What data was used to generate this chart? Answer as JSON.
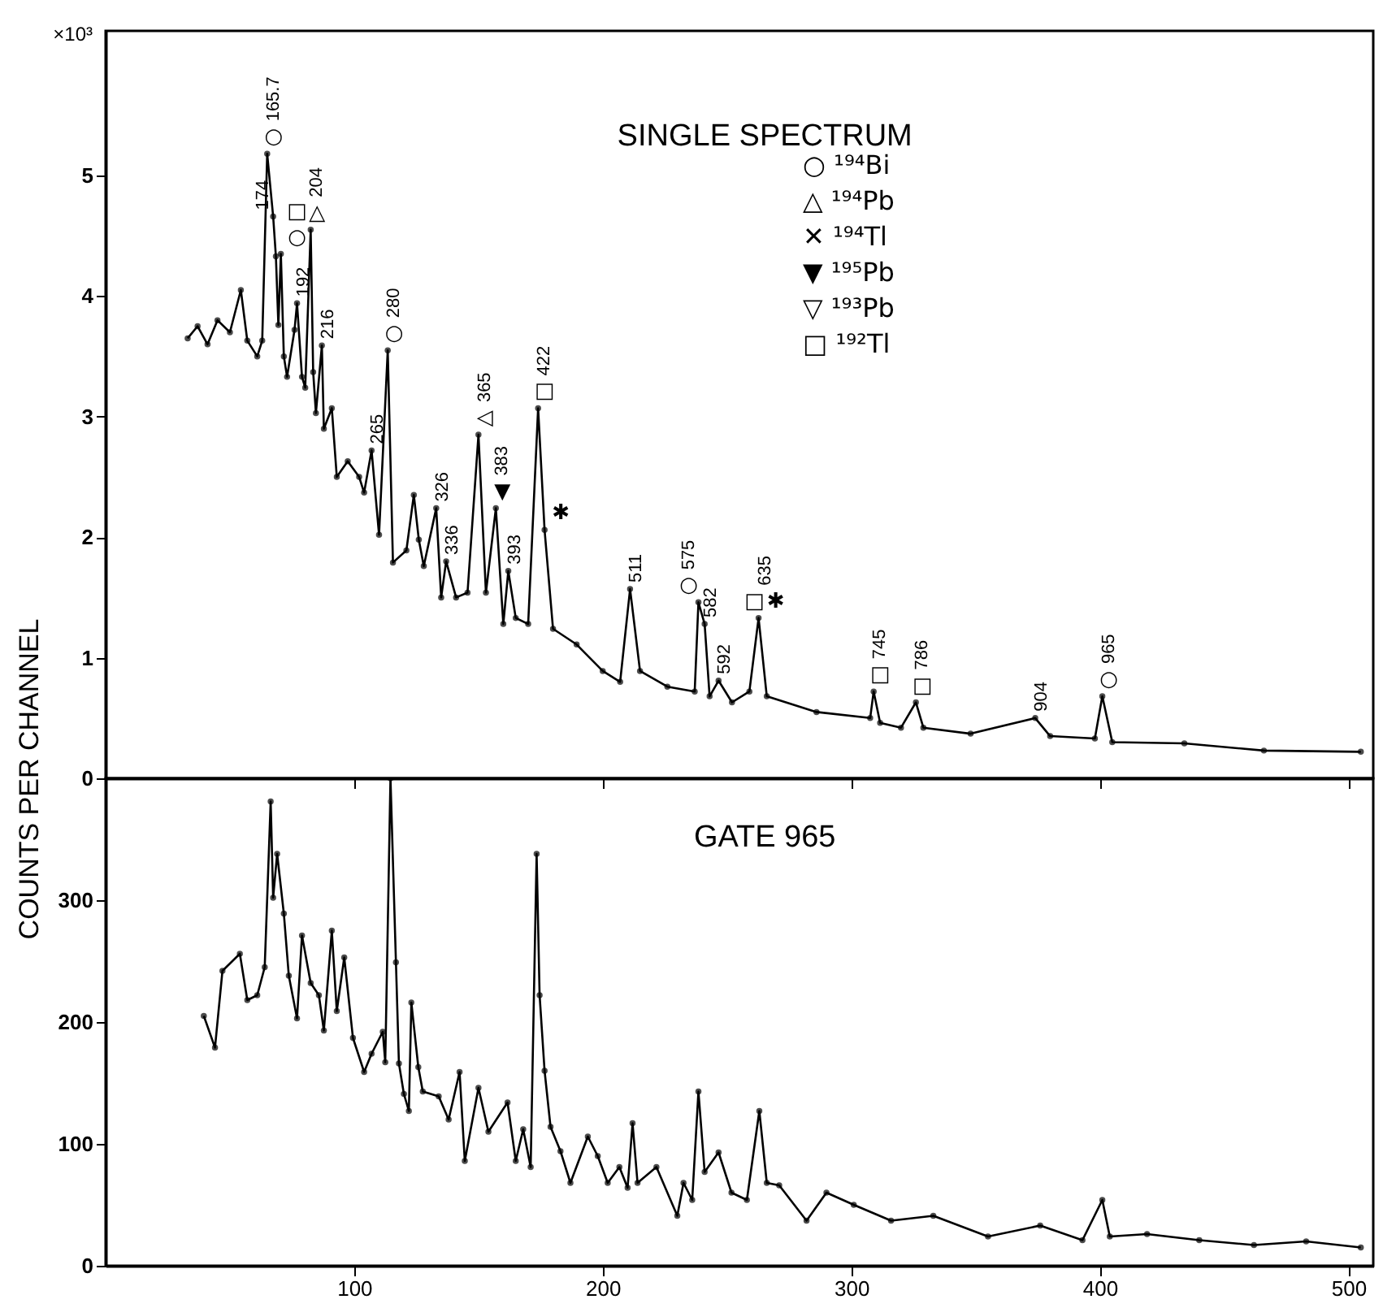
{
  "chart_data": [
    {
      "type": "line",
      "title": "SINGLE SPECTRUM",
      "ylabel": "COUNTS PER CHANNEL",
      "marker": "circle",
      "grid": false,
      "tick_labels": "y",
      "xlim": [
        0,
        510
      ],
      "ylim": [
        0,
        6.2
      ],
      "xticks": [
        100,
        200,
        300,
        400,
        500
      ],
      "yticks": [
        0,
        1,
        2,
        3,
        4,
        5
      ],
      "x": [
        33,
        37,
        41,
        45,
        50,
        54.4,
        57,
        61,
        63,
        65,
        67.4,
        68.5,
        69.5,
        70.5,
        71.7,
        73,
        76,
        77,
        79,
        80.3,
        82.5,
        83.5,
        84.6,
        87,
        87.8,
        91,
        93,
        97.4,
        102,
        104,
        107,
        110,
        113.5,
        115.6,
        121,
        124,
        126,
        128,
        133,
        135,
        137,
        141,
        145.6,
        150,
        153,
        157,
        160,
        162,
        165,
        170,
        174,
        176.6,
        180,
        189.5,
        200,
        207,
        211,
        215,
        226,
        237,
        238.5,
        241,
        243,
        246.6,
        252,
        259,
        262.7,
        266,
        286,
        307.6,
        309,
        311.6,
        320,
        326,
        329,
        348,
        374,
        380,
        398,
        401,
        405,
        434,
        466,
        505
      ],
      "series": [
        {
          "color": "#000000",
          "values": [
            3.65,
            3.75,
            3.6,
            3.8,
            3.7,
            4.05,
            3.63,
            3.5,
            3.63,
            5.18,
            4.66,
            4.33,
            3.76,
            4.35,
            3.5,
            3.33,
            3.72,
            3.94,
            3.33,
            3.24,
            4.55,
            3.37,
            3.03,
            3.59,
            2.9,
            3.07,
            2.5,
            2.63,
            2.5,
            2.37,
            2.72,
            2.02,
            3.55,
            1.79,
            1.89,
            2.35,
            1.98,
            1.76,
            2.24,
            1.5,
            1.8,
            1.5,
            1.54,
            2.85,
            1.54,
            2.24,
            1.28,
            1.72,
            1.33,
            1.28,
            3.07,
            2.06,
            1.24,
            1.11,
            0.89,
            0.8,
            1.57,
            0.89,
            0.76,
            0.72,
            1.46,
            1.28,
            0.68,
            0.81,
            0.63,
            0.72,
            1.33,
            0.68,
            0.55,
            0.5,
            0.72,
            0.46,
            0.42,
            0.63,
            0.42,
            0.37,
            0.5,
            0.35,
            0.33,
            0.68,
            0.3,
            0.29,
            0.23,
            0.22
          ]
        }
      ],
      "annotations": [
        "×10³",
        "○ ¹⁹⁴Bi",
        "△ ¹⁹⁴Pb",
        "✕ ¹⁹⁴Tl",
        "▼ ¹⁹⁵Pb",
        "▽ ¹⁹³Pb",
        "□ ¹⁹²Tl",
        {
          "text": "165.7",
          "x": 65,
          "y": 5.18
        },
        {
          "text": "○",
          "x": 65,
          "y": 5.18
        },
        {
          "text": "174",
          "x": 67.4,
          "y": 4.66
        },
        {
          "text": "○",
          "x": 70.5,
          "y": 4.35
        },
        {
          "text": "□",
          "x": 70.5,
          "y": 4.35
        },
        {
          "text": "204",
          "x": 82.5,
          "y": 4.55
        },
        {
          "text": "△",
          "x": 82.5,
          "y": 4.55
        },
        {
          "text": "192",
          "x": 77,
          "y": 3.94
        },
        {
          "text": "216",
          "x": 87,
          "y": 3.59
        },
        {
          "text": "280",
          "x": 113.5,
          "y": 3.55
        },
        {
          "text": "○",
          "x": 113.5,
          "y": 3.55
        },
        {
          "text": "265",
          "x": 107,
          "y": 2.72
        },
        {
          "text": "326",
          "x": 133,
          "y": 2.24
        },
        {
          "text": "336",
          "x": 137,
          "y": 1.8
        },
        {
          "text": "365",
          "x": 150,
          "y": 2.85
        },
        {
          "text": "◁",
          "x": 150,
          "y": 2.85
        },
        {
          "text": "383",
          "x": 157,
          "y": 2.24
        },
        {
          "text": "▼",
          "x": 157,
          "y": 2.24
        },
        {
          "text": "393",
          "x": 162,
          "y": 1.72
        },
        {
          "text": "422",
          "x": 174,
          "y": 3.07
        },
        {
          "text": "□",
          "x": 174,
          "y": 3.07
        },
        {
          "text": "✱",
          "x": 176.6,
          "y": 2.06
        },
        {
          "text": "511",
          "x": 211,
          "y": 1.57
        },
        {
          "text": "575",
          "x": 238.5,
          "y": 1.46
        },
        {
          "text": "○",
          "x": 238.5,
          "y": 1.46
        },
        {
          "text": "582",
          "x": 241,
          "y": 1.28
        },
        {
          "text": "592",
          "x": 246.6,
          "y": 0.81
        },
        {
          "text": "635",
          "x": 262.7,
          "y": 1.33
        },
        {
          "text": "□",
          "x": 262.7,
          "y": 1.33
        },
        {
          "text": "✱",
          "x": 262.7,
          "y": 1.33
        },
        {
          "text": "745",
          "x": 309,
          "y": 0.72
        },
        {
          "text": "□",
          "x": 309,
          "y": 0.72
        },
        {
          "text": "786",
          "x": 326,
          "y": 0.63
        },
        {
          "text": "□",
          "x": 326,
          "y": 0.63
        },
        {
          "text": "904",
          "x": 374,
          "y": 0.5
        },
        {
          "text": "965",
          "x": 401,
          "y": 0.68
        },
        {
          "text": "○",
          "x": 401,
          "y": 0.68
        }
      ]
    },
    {
      "type": "line",
      "title": "GATE 965",
      "marker": "circle",
      "grid": false,
      "xlim": [
        0,
        510
      ],
      "ylim": [
        0,
        400
      ],
      "xticks": [
        100,
        200,
        300,
        400,
        500
      ],
      "yticks": [
        0,
        100,
        200,
        300
      ],
      "x": [
        39.5,
        44,
        47,
        54,
        57,
        61,
        64,
        66.4,
        67.4,
        69,
        71.7,
        73.7,
        77,
        79,
        82.5,
        85.8,
        87.8,
        91,
        93,
        96,
        99.5,
        104,
        107,
        111.5,
        112.5,
        114.6,
        116.8,
        118,
        120,
        122,
        123,
        125.8,
        127.6,
        134,
        138,
        142.4,
        144.5,
        150,
        154,
        161.7,
        165,
        168,
        171,
        173.4,
        174.6,
        176.6,
        179,
        183,
        187,
        194,
        198,
        202,
        206.7,
        210,
        212,
        214,
        221.6,
        230,
        232.5,
        236,
        238.5,
        241,
        246.6,
        251.8,
        258,
        263,
        266,
        271,
        282,
        290,
        301,
        316,
        333,
        355,
        376,
        393,
        401,
        404,
        419,
        440,
        462,
        483,
        505
      ],
      "series": [
        {
          "color": "#000000",
          "values": [
            205,
            179,
            242,
            256,
            218,
            222,
            245,
            381,
            302,
            338,
            289,
            238,
            203,
            271,
            232,
            222,
            193,
            275,
            209,
            253,
            187,
            159,
            174,
            192,
            167,
            400,
            249,
            166,
            141,
            127,
            216,
            163,
            143,
            139,
            120,
            159,
            86,
            146,
            110,
            134,
            86,
            112,
            81,
            338,
            222,
            160,
            114,
            94,
            68,
            106,
            90,
            68,
            81,
            64,
            117,
            68,
            81,
            41,
            68,
            54,
            143,
            77,
            93,
            60,
            54,
            127,
            68,
            66,
            37,
            60,
            50,
            37,
            41,
            24,
            33,
            21,
            54,
            24,
            26,
            21,
            17,
            20,
            15
          ]
        }
      ]
    }
  ]
}
